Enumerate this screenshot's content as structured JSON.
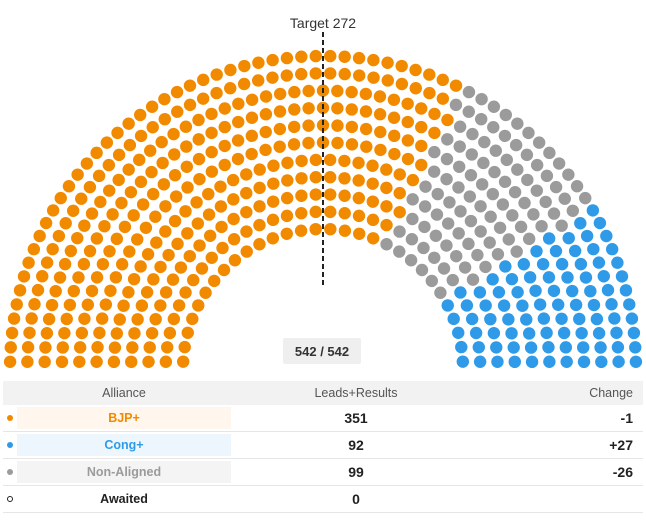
{
  "chart_data": {
    "type": "parliament",
    "total_seats": 542,
    "target_label": "Target 272",
    "target": 272,
    "summary": "542 / 542",
    "series": [
      {
        "name": "BJP+",
        "values": [
          351
        ],
        "color": "#f28a00"
      },
      {
        "name": "Non-Aligned",
        "values": [
          99
        ],
        "color": "#9b9b9b"
      },
      {
        "name": "Cong+",
        "values": [
          92
        ],
        "color": "#2f9be8"
      }
    ]
  },
  "table": {
    "headers": {
      "alliance": "Alliance",
      "leads": "Leads+Results",
      "change": "Change"
    },
    "rows": [
      {
        "name": "BJP+",
        "leads": "351",
        "change": "-1",
        "color": "#f28a00",
        "bg": "#fff6ed"
      },
      {
        "name": "Cong+",
        "leads": "92",
        "change": "+27",
        "color": "#2f9be8",
        "bg": "#eef6fd"
      },
      {
        "name": "Non-Aligned",
        "leads": "99",
        "change": "-26",
        "color": "#9b9b9b",
        "bg": "#f4f4f4"
      },
      {
        "name": "Awaited",
        "leads": "0",
        "change": "",
        "color": "#222222",
        "bg": "#ffffff"
      }
    ]
  }
}
